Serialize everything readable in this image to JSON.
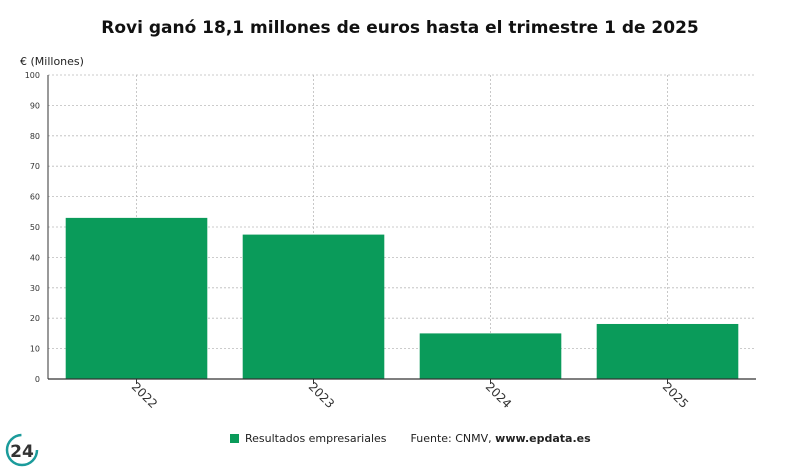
{
  "header": {
    "title": "Rovi ganó 18,1 millones de euros hasta el trimestre 1 de 2025",
    "unit_label": "€ (Millones)"
  },
  "legend": {
    "series_label": "Resultados empresariales",
    "source_prefix": "Fuente: CNMV, ",
    "source_site": "www.epdata.es"
  },
  "logo": {
    "text": "24"
  },
  "colors": {
    "bar": "#0a9b5a",
    "axis": "#333333",
    "grid": "#bbbbbb"
  },
  "chart_data": {
    "type": "bar",
    "title": "Rovi ganó 18,1 millones de euros hasta el trimestre 1 de 2025",
    "ylabel": "€ (Millones)",
    "xlabel": "",
    "categories": [
      "2022",
      "2023",
      "2024",
      "2025"
    ],
    "series": [
      {
        "name": "Resultados empresariales",
        "values": [
          53.0,
          47.5,
          15.0,
          18.1
        ]
      }
    ],
    "ylim": [
      0,
      100
    ],
    "yticks": [
      0,
      10,
      20,
      30,
      40,
      50,
      60,
      70,
      80,
      90,
      100
    ],
    "grid": true,
    "legend_position": "bottom"
  }
}
